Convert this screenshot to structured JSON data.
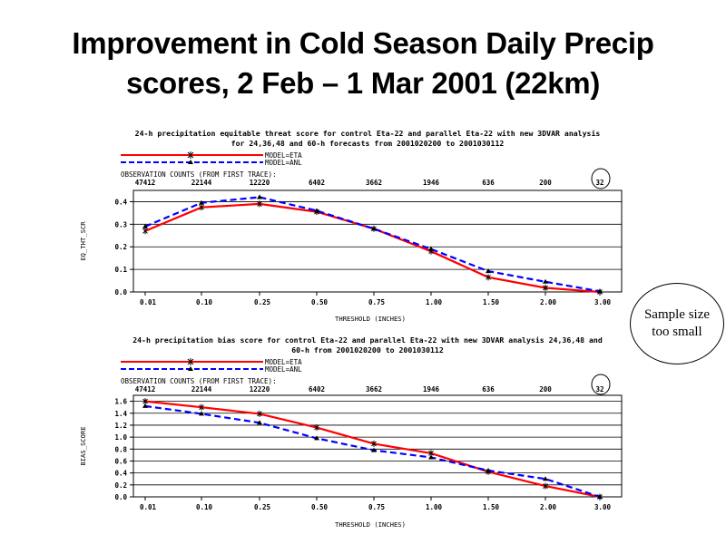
{
  "slide": {
    "title_line1": "Improvement in Cold Season Daily Precip",
    "title_line2": "scores, 2 Feb – 1 Mar 2001 (22km)"
  },
  "callout": {
    "line1": "Sample size",
    "line2": "too small"
  },
  "colors": {
    "model_eta": "#ff0000",
    "model_anl": "#0000ff",
    "marker": "#000000",
    "grid": "#000000"
  },
  "chart_data": [
    {
      "type": "line",
      "title_line1": "24-h precipitation equitable threat score for control Eta-22 and parallel Eta-22 with new 3DVAR analysis",
      "title_line2": "for 24,36,48 and 60-h forecasts from 2001020200 to 2001030112",
      "xlabel": "THRESHOLD (INCHES)",
      "ylabel": "EQ_THT_SCR",
      "categories": [
        "0.01",
        "0.10",
        "0.25",
        "0.50",
        "0.75",
        "1.00",
        "1.50",
        "2.00",
        "3.00"
      ],
      "y_ticks": [
        "0.0",
        "0.1",
        "0.2",
        "0.3",
        "0.4"
      ],
      "ylim": [
        0,
        0.45
      ],
      "grid": true,
      "legend_position": "top-left",
      "counts_label": "OBSERVATION COUNTS (FROM FIRST TRACE):",
      "counts": [
        "47412",
        "22144",
        "12220",
        "6402",
        "3662",
        "1946",
        "636",
        "200",
        "32"
      ],
      "series": [
        {
          "name": "MODEL=ETA",
          "values": [
            0.27,
            0.375,
            0.39,
            0.355,
            0.28,
            0.18,
            0.065,
            0.018,
            0.0
          ]
        },
        {
          "name": "MODEL=ANL",
          "values": [
            0.29,
            0.395,
            0.42,
            0.36,
            0.28,
            0.19,
            0.092,
            0.045,
            0.003
          ]
        }
      ]
    },
    {
      "type": "line",
      "title_line1": "24-h precipitation bias score for control Eta-22 and parallel Eta-22 with new 3DVAR analysis 24,36,48 and",
      "title_line2": "60-h from 2001020200 to 2001030112",
      "xlabel": "THRESHOLD (INCHES)",
      "ylabel": "BIAS_SCORE",
      "categories": [
        "0.01",
        "0.10",
        "0.25",
        "0.50",
        "0.75",
        "1.00",
        "1.50",
        "2.00",
        "3.00"
      ],
      "y_ticks": [
        "0.0",
        "0.2",
        "0.4",
        "0.6",
        "0.8",
        "1.0",
        "1.2",
        "1.4",
        "1.6"
      ],
      "ylim": [
        0,
        1.7
      ],
      "grid": true,
      "legend_position": "top-left",
      "counts_label": "OBSERVATION COUNTS (FROM FIRST TRACE):",
      "counts": [
        "47412",
        "22144",
        "12220",
        "6402",
        "3662",
        "1946",
        "636",
        "200",
        "32"
      ],
      "series": [
        {
          "name": "MODEL=ETA",
          "values": [
            1.6,
            1.5,
            1.39,
            1.16,
            0.89,
            0.73,
            0.42,
            0.18,
            0.0
          ]
        },
        {
          "name": "MODEL=ANL",
          "values": [
            1.52,
            1.39,
            1.24,
            0.98,
            0.78,
            0.66,
            0.44,
            0.3,
            0.0
          ]
        }
      ]
    }
  ]
}
